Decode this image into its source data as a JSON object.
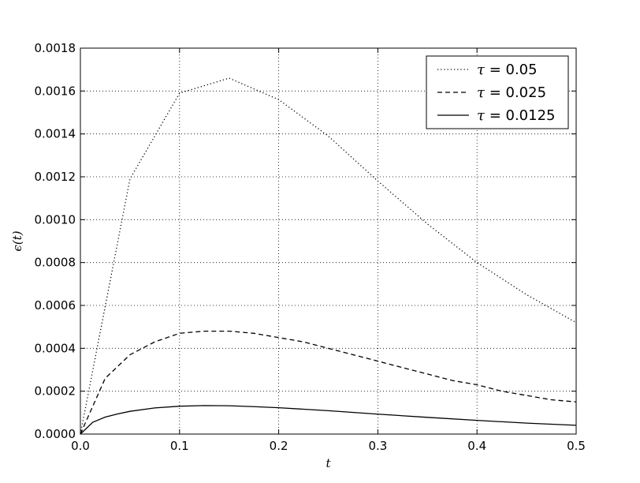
{
  "chart_data": {
    "type": "line",
    "title": "",
    "xlabel": "t",
    "ylabel": "ϵ(t)",
    "xlim": [
      0.0,
      0.5
    ],
    "ylim": [
      0.0,
      0.0018
    ],
    "grid": true,
    "legend_position": "top-right",
    "x_ticks": [
      0.0,
      0.1,
      0.2,
      0.3,
      0.4,
      0.5
    ],
    "y_ticks": [
      0.0,
      0.0002,
      0.0004,
      0.0006,
      0.0008,
      0.001,
      0.0012,
      0.0014,
      0.0016,
      0.0018
    ],
    "x_tick_labels": [
      "0.0",
      "0.1",
      "0.2",
      "0.3",
      "0.4",
      "0.5"
    ],
    "y_tick_labels": [
      "0.0000",
      "0.0002",
      "0.0004",
      "0.0006",
      "0.0008",
      "0.0010",
      "0.0012",
      "0.0014",
      "0.0016",
      "0.0018"
    ],
    "series": [
      {
        "name": "τ = 0.05",
        "legend_symbol": "τ",
        "legend_value": "= 0.05",
        "style": "dotted",
        "x": [
          0.0,
          0.05,
          0.1,
          0.15,
          0.2,
          0.25,
          0.3,
          0.35,
          0.4,
          0.45,
          0.5
        ],
        "y": [
          0.0,
          0.00119,
          0.00159,
          0.00166,
          0.00156,
          0.00139,
          0.00118,
          0.00098,
          0.0008,
          0.00065,
          0.00052
        ]
      },
      {
        "name": "τ = 0.025",
        "legend_symbol": "τ",
        "legend_value": "= 0.025",
        "style": "dashed",
        "x": [
          0.0,
          0.025,
          0.05,
          0.075,
          0.1,
          0.125,
          0.15,
          0.175,
          0.2,
          0.225,
          0.25,
          0.275,
          0.3,
          0.325,
          0.35,
          0.375,
          0.4,
          0.425,
          0.45,
          0.475,
          0.5
        ],
        "y": [
          0.0,
          0.00026,
          0.00037,
          0.00043,
          0.00047,
          0.00048,
          0.00048,
          0.00047,
          0.00045,
          0.00043,
          0.0004,
          0.00037,
          0.00034,
          0.00031,
          0.00028,
          0.00025,
          0.00023,
          0.0002,
          0.00018,
          0.00016,
          0.00015
        ]
      },
      {
        "name": "τ = 0.0125",
        "legend_symbol": "τ",
        "legend_value": "= 0.0125",
        "style": "solid",
        "x": [
          0.0,
          0.0125,
          0.025,
          0.0375,
          0.05,
          0.075,
          0.1,
          0.125,
          0.15,
          0.175,
          0.2,
          0.25,
          0.3,
          0.35,
          0.4,
          0.45,
          0.5
        ],
        "y": [
          0.0,
          5.5e-05,
          7.9e-05,
          9.4e-05,
          0.000106,
          0.000122,
          0.00013,
          0.000133,
          0.000132,
          0.000128,
          0.000123,
          0.000109,
          9.3e-05,
          7.8e-05,
          6.4e-05,
          5.1e-05,
          4.1e-05
        ]
      }
    ]
  }
}
